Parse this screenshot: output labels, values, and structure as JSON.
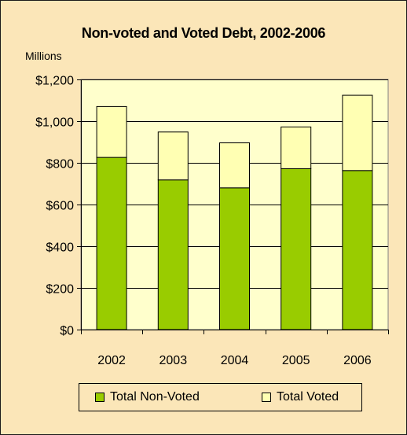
{
  "chart_data": {
    "type": "bar",
    "stacked": true,
    "title": "Non-voted and Voted Debt, 2002-2006",
    "ylabel": "Millions",
    "xlabel": "",
    "categories": [
      "2002",
      "2003",
      "2004",
      "2005",
      "2006"
    ],
    "series": [
      {
        "name": "Total Non-Voted",
        "values": [
          826,
          718,
          680,
          772,
          763
        ],
        "color": "#99cc00"
      },
      {
        "name": "Total Voted",
        "values": [
          244,
          230,
          216,
          200,
          361
        ],
        "color": "#ffffb3"
      }
    ],
    "ylim": [
      0,
      1200
    ],
    "yticks": [
      0,
      200,
      400,
      600,
      800,
      1000,
      1200
    ],
    "ytick_labels": [
      "$0",
      "$200",
      "$400",
      "$600",
      "$800",
      "$1,000",
      "$1,200"
    ],
    "grid": true,
    "legend_position": "bottom",
    "plot_background": "#ffffcc",
    "chart_background": "#fbe6b8"
  }
}
